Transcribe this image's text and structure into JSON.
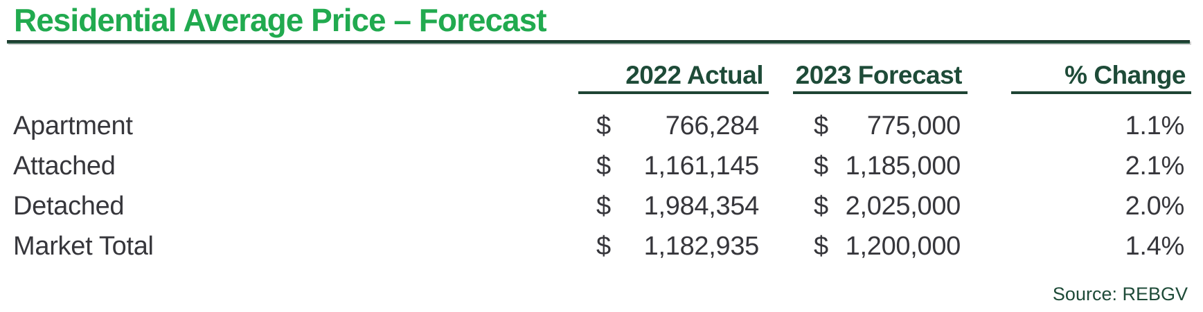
{
  "page": {
    "title": "Residential Average Price – Forecast",
    "source_note": "Source: REBGV"
  },
  "table": {
    "currency_symbol": "$",
    "headers": {
      "col_2022": "2022 Actual",
      "col_2023": "2023 Forecast",
      "col_pct": "% Change"
    },
    "rows": [
      {
        "label": "Apartment",
        "actual": "766,284",
        "forecast": "775,000",
        "change": "1.1%"
      },
      {
        "label": "Attached",
        "actual": "1,161,145",
        "forecast": "1,185,000",
        "change": "2.1%"
      },
      {
        "label": "Detached",
        "actual": "1,984,354",
        "forecast": "2,025,000",
        "change": "2.0%"
      },
      {
        "label": "Market Total",
        "actual": "1,182,935",
        "forecast": "1,200,000",
        "change": "1.4%"
      }
    ]
  },
  "chart_data": {
    "type": "table",
    "title": "Residential Average Price – Forecast",
    "categories": [
      "Apartment",
      "Attached",
      "Detached",
      "Market Total"
    ],
    "series": [
      {
        "name": "2022 Actual",
        "values": [
          766284,
          1161145,
          1984354,
          1182935
        ]
      },
      {
        "name": "2023 Forecast",
        "values": [
          775000,
          1185000,
          2025000,
          1200000
        ]
      },
      {
        "name": "% Change",
        "values": [
          1.1,
          2.1,
          2.0,
          1.4
        ]
      }
    ],
    "source": "Source: REBGV"
  },
  "colors": {
    "title_green": "#21AA4F",
    "header_dark_green": "#1E4B38",
    "rule_dark_green": "#1E4434",
    "body_text": "#36363B"
  }
}
